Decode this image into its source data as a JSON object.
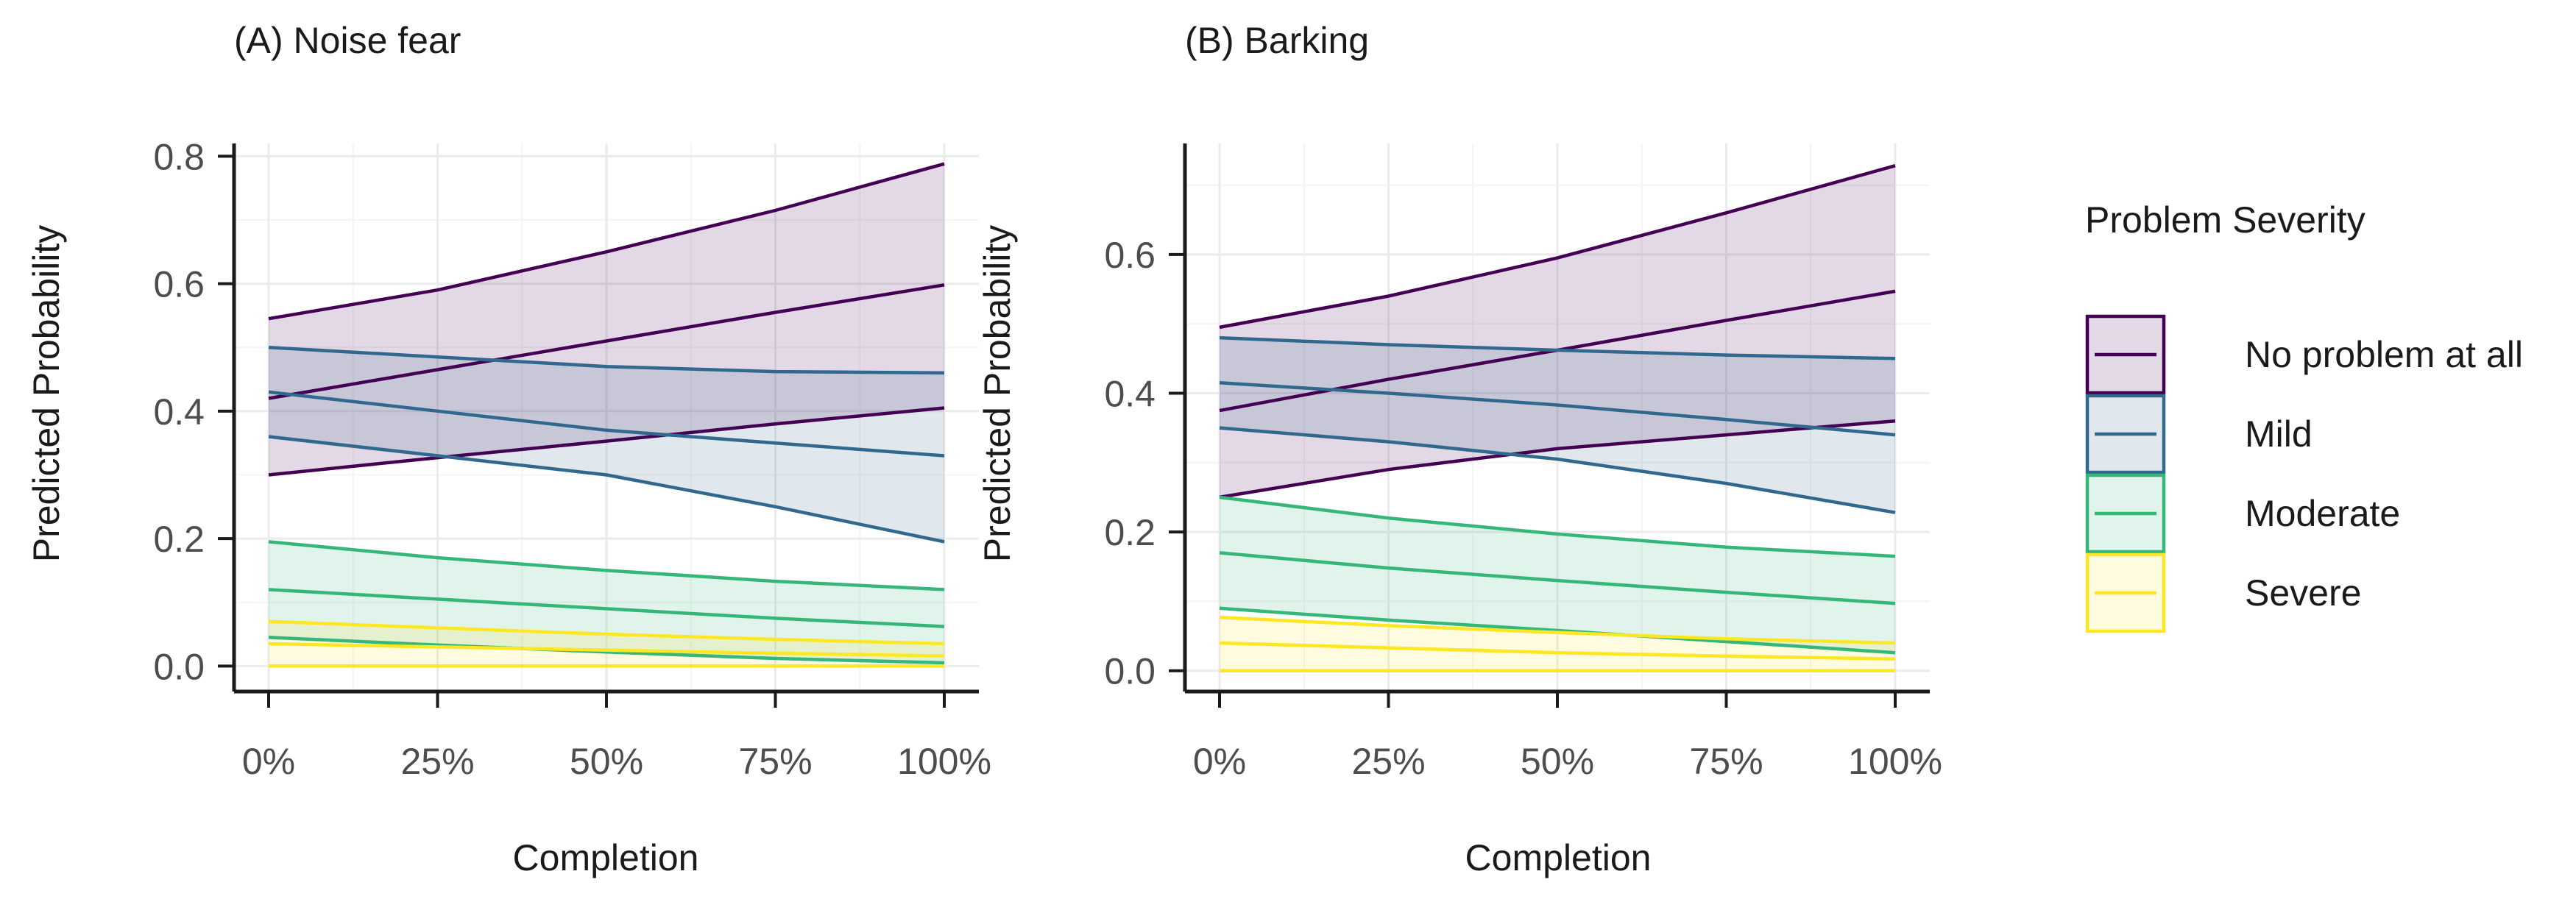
{
  "chart_data": [
    {
      "type": "line",
      "title": "(A) Noise fear",
      "xlabel": "Completion",
      "ylabel": "Predicted Probability",
      "xlim": [
        0,
        100
      ],
      "ylim": [
        -0.04,
        0.82
      ],
      "x_ticks": [
        0,
        25,
        50,
        75,
        100
      ],
      "x_tick_labels": [
        "0%",
        "25%",
        "50%",
        "75%",
        "100%"
      ],
      "y_ticks": [
        0,
        0.2,
        0.4,
        0.6,
        0.8
      ],
      "y_tick_labels": [
        "0.0",
        "0.2",
        "0.4",
        "0.6",
        "0.8"
      ],
      "grid": true,
      "x": [
        0,
        25,
        50,
        75,
        100
      ],
      "series": [
        {
          "name": "No problem at all",
          "color": "#440154",
          "fit": [
            0.42,
            0.465,
            0.51,
            0.555,
            0.598
          ],
          "lower": [
            0.3,
            0.327,
            0.353,
            0.38,
            0.405
          ],
          "upper": [
            0.545,
            0.59,
            0.65,
            0.715,
            0.788
          ]
        },
        {
          "name": "Mild",
          "color": "#31688E",
          "fit": [
            0.43,
            0.4,
            0.37,
            0.35,
            0.33
          ],
          "lower": [
            0.36,
            0.33,
            0.3,
            0.25,
            0.195
          ],
          "upper": [
            0.5,
            0.485,
            0.47,
            0.462,
            0.46
          ]
        },
        {
          "name": "Moderate",
          "color": "#35B779",
          "fit": [
            0.12,
            0.105,
            0.09,
            0.075,
            0.062
          ],
          "lower": [
            0.045,
            0.033,
            0.022,
            0.012,
            0.005
          ],
          "upper": [
            0.195,
            0.17,
            0.15,
            0.133,
            0.12
          ]
        },
        {
          "name": "Severe",
          "color": "#FDE725",
          "fit": [
            0.035,
            0.03,
            0.025,
            0.02,
            0.016
          ],
          "lower": [
            0.0,
            0.0,
            0.0,
            0.0,
            0.0
          ],
          "upper": [
            0.07,
            0.06,
            0.05,
            0.042,
            0.035
          ]
        }
      ]
    },
    {
      "type": "line",
      "title": "(B) Barking",
      "xlabel": "Completion",
      "ylabel": "Predicted Probability",
      "xlim": [
        0,
        100
      ],
      "ylim": [
        -0.03,
        0.76
      ],
      "x_ticks": [
        0,
        25,
        50,
        75,
        100
      ],
      "x_tick_labels": [
        "0%",
        "25%",
        "50%",
        "75%",
        "100%"
      ],
      "y_ticks": [
        0,
        0.2,
        0.4,
        0.6
      ],
      "y_tick_labels": [
        "0.0",
        "0.2",
        "0.4",
        "0.6"
      ],
      "grid": true,
      "x": [
        0,
        25,
        50,
        75,
        100
      ],
      "series": [
        {
          "name": "No problem at all",
          "color": "#440154",
          "fit": [
            0.375,
            0.42,
            0.462,
            0.505,
            0.547
          ],
          "lower": [
            0.25,
            0.29,
            0.32,
            0.34,
            0.36
          ],
          "upper": [
            0.495,
            0.54,
            0.595,
            0.66,
            0.728
          ]
        },
        {
          "name": "Mild",
          "color": "#31688E",
          "fit": [
            0.415,
            0.4,
            0.383,
            0.362,
            0.34
          ],
          "lower": [
            0.35,
            0.33,
            0.305,
            0.27,
            0.228
          ],
          "upper": [
            0.48,
            0.47,
            0.462,
            0.455,
            0.45
          ]
        },
        {
          "name": "Moderate",
          "color": "#35B779",
          "fit": [
            0.17,
            0.148,
            0.13,
            0.113,
            0.097
          ],
          "lower": [
            0.09,
            0.073,
            0.058,
            0.042,
            0.026
          ],
          "upper": [
            0.25,
            0.22,
            0.197,
            0.178,
            0.165
          ]
        },
        {
          "name": "Severe",
          "color": "#FDE725",
          "fit": [
            0.04,
            0.033,
            0.026,
            0.021,
            0.017
          ],
          "lower": [
            0.0,
            0.0,
            0.0,
            0.0,
            0.0
          ],
          "upper": [
            0.077,
            0.065,
            0.055,
            0.046,
            0.04
          ]
        }
      ]
    }
  ],
  "legend": {
    "title": "Problem Severity",
    "placement": "right",
    "items": [
      {
        "label": "No problem at all",
        "color": "#440154"
      },
      {
        "label": "Mild",
        "color": "#31688E"
      },
      {
        "label": "Moderate",
        "color": "#35B779"
      },
      {
        "label": "Severe",
        "color": "#FDE725"
      }
    ]
  }
}
